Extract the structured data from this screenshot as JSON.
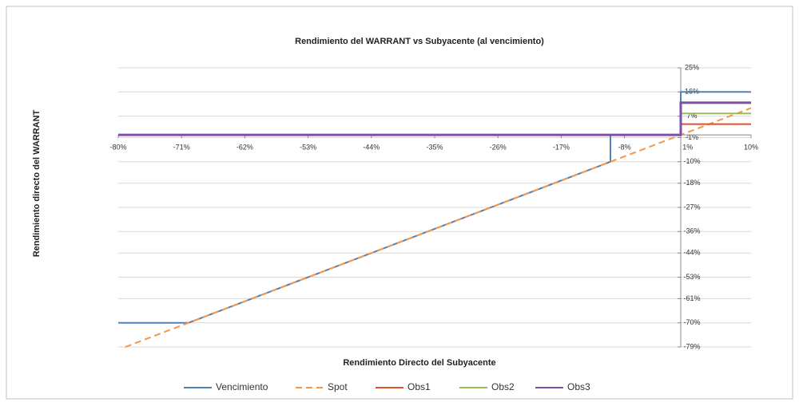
{
  "chart_data": {
    "type": "line",
    "title": "Rendimiento del WARRANT vs Subyacente (al vencimiento)",
    "x_label": "Rendimiento Directo del Subyacente",
    "y_label": "Rendimiento directo del WARRANT",
    "xlim": [
      -80,
      10
    ],
    "xticks": [
      {
        "value": -80,
        "label": "-80%"
      },
      {
        "value": -71,
        "label": "-71%"
      },
      {
        "value": -62,
        "label": "-62%"
      },
      {
        "value": -53,
        "label": "-53%"
      },
      {
        "value": -44,
        "label": "-44%"
      },
      {
        "value": -35,
        "label": "-35%"
      },
      {
        "value": -26,
        "label": "-26%"
      },
      {
        "value": -17,
        "label": "-17%"
      },
      {
        "value": -8,
        "label": "-8%"
      },
      {
        "value": 1,
        "label": "1%"
      },
      {
        "value": 10,
        "label": "10%"
      }
    ],
    "ylim": [
      -79,
      25
    ],
    "yticks": [
      {
        "value": 25,
        "label": "25%"
      },
      {
        "value": 16,
        "label": "16%"
      },
      {
        "value": 7,
        "label": "7%"
      },
      {
        "value": -1,
        "label": "-1%"
      },
      {
        "value": -10,
        "label": "-10%"
      },
      {
        "value": -18,
        "label": "-18%"
      },
      {
        "value": -27,
        "label": "-27%"
      },
      {
        "value": -36,
        "label": "-36%"
      },
      {
        "value": -44,
        "label": "-44%"
      },
      {
        "value": -53,
        "label": "-53%"
      },
      {
        "value": -61,
        "label": "-61%"
      },
      {
        "value": -70,
        "label": "-70%"
      },
      {
        "value": -79,
        "label": "-79%"
      }
    ],
    "grid": true,
    "legend": "bottom",
    "series": [
      {
        "name": "Vencimiento",
        "color": "#4f81bd",
        "dash": false,
        "x": [
          -80,
          -70,
          -10,
          -10,
          0,
          0,
          10
        ],
        "values": [
          -70,
          -70,
          -10,
          0,
          0,
          16,
          16
        ]
      },
      {
        "name": "Spot",
        "color": "#f79646",
        "dash": true,
        "x": [
          -79,
          10
        ],
        "values": [
          -79,
          10
        ]
      },
      {
        "name": "Obs1",
        "color": "#e0502a",
        "dash": false,
        "x": [
          -80,
          0,
          0,
          10
        ],
        "values": [
          0,
          0,
          4,
          4
        ]
      },
      {
        "name": "Obs2",
        "color": "#9bbb59",
        "dash": false,
        "x": [
          -80,
          0,
          0,
          10
        ],
        "values": [
          0,
          0,
          8,
          8
        ]
      },
      {
        "name": "Obs3",
        "color": "#7f4fa8",
        "dash": false,
        "x": [
          -80,
          0,
          0,
          10
        ],
        "values": [
          0,
          0,
          12,
          12
        ]
      }
    ]
  }
}
